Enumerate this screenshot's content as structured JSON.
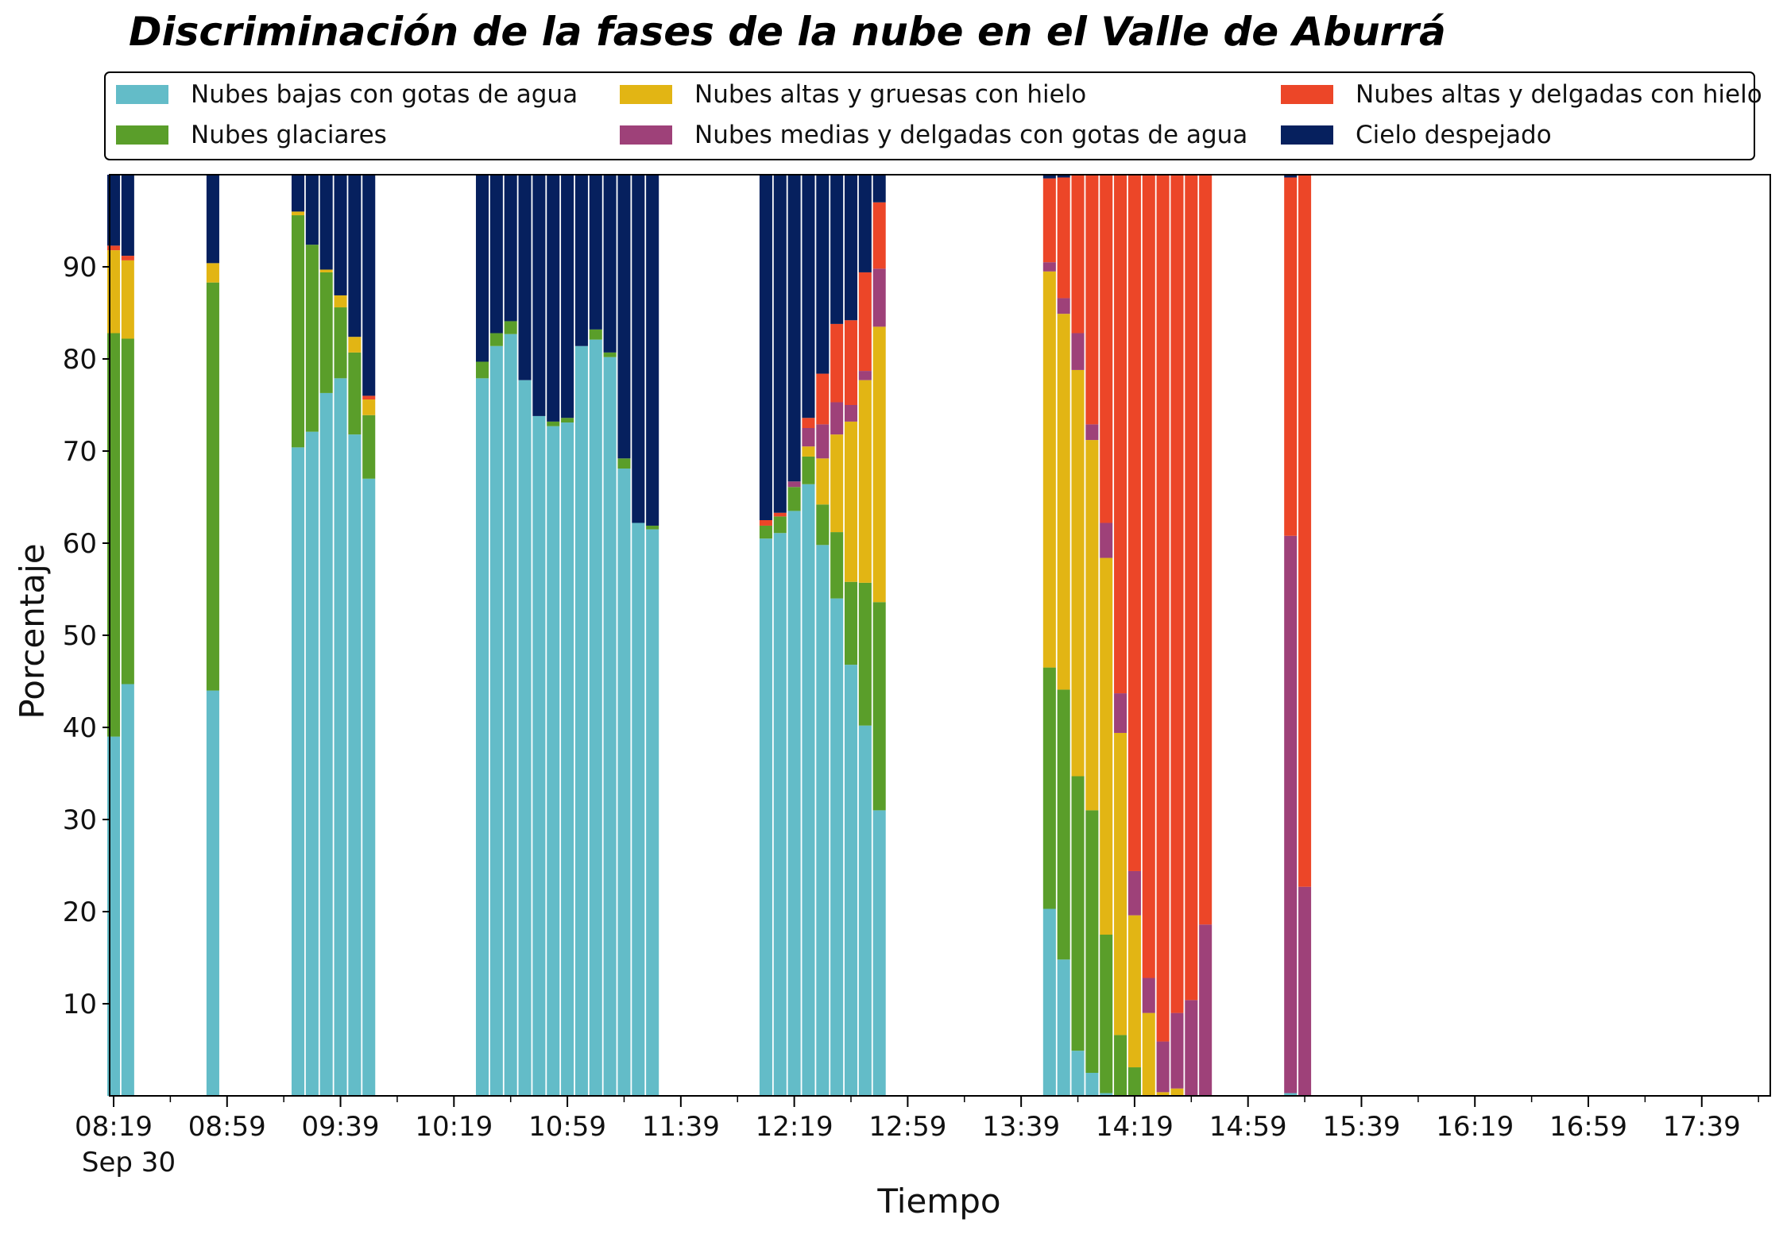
{
  "chart_data": {
    "type": "bar",
    "stacked": true,
    "title": "Discriminación de la fases de la nube en el Valle de Aburrá",
    "xlabel": "Tiempo",
    "ylabel": "Porcentaje",
    "ylim": [
      0,
      100
    ],
    "yticks": [
      10,
      20,
      30,
      40,
      50,
      60,
      70,
      80,
      90
    ],
    "xtick_labels": [
      "08:19",
      "08:59",
      "09:39",
      "10:19",
      "10:59",
      "11:39",
      "12:19",
      "12:59",
      "13:39",
      "14:19",
      "14:59",
      "15:39",
      "16:19",
      "16:59",
      "17:39"
    ],
    "x_date_label": "Sep 30",
    "grid": false,
    "legend_position": "top",
    "legend": [
      {
        "name": "Nubes bajas con gotas de agua",
        "color": "#63bcc8",
        "key": "bajas"
      },
      {
        "name": "Nubes glaciares",
        "color": "#5a9e2a",
        "key": "glaciares"
      },
      {
        "name": "Nubes altas y gruesas con hielo",
        "color": "#e2b514",
        "key": "altas_gruesas"
      },
      {
        "name": "Nubes medias y delgadas con gotas de agua",
        "color": "#9e4179",
        "key": "medias_delgadas"
      },
      {
        "name": "Nubes altas y delgadas con hielo",
        "color": "#ec4628",
        "key": "altas_delgadas"
      },
      {
        "name": "Cielo despejado",
        "color": "#06205e",
        "key": "despejado"
      }
    ],
    "series_order": [
      "bajas",
      "glaciares",
      "altas_gruesas",
      "medias_delgadas",
      "altas_delgadas",
      "despejado"
    ],
    "bars": [
      {
        "time": "08:19",
        "values": [
          39,
          43.8,
          9,
          0,
          0.5,
          7.7
        ]
      },
      {
        "time": "08:24",
        "values": [
          44.7,
          37.5,
          8.5,
          0,
          0.5,
          8.8
        ]
      },
      {
        "time": "08:54",
        "values": [
          44,
          44.3,
          2.1,
          0,
          0,
          9.6
        ]
      },
      {
        "time": "09:24",
        "values": [
          70.4,
          25.2,
          0.4,
          0,
          0,
          4
        ]
      },
      {
        "time": "09:29",
        "values": [
          72.1,
          20.3,
          0,
          0,
          0,
          7.6
        ]
      },
      {
        "time": "09:34",
        "values": [
          76.3,
          13.1,
          0.3,
          0,
          0,
          10.3
        ]
      },
      {
        "time": "09:39",
        "values": [
          77.9,
          7.7,
          1.3,
          0,
          0,
          13.1
        ]
      },
      {
        "time": "09:44",
        "values": [
          71.8,
          8.9,
          1.7,
          0,
          0,
          17.6
        ]
      },
      {
        "time": "09:49",
        "values": [
          67,
          6.9,
          1.7,
          0,
          0.4,
          24
        ]
      },
      {
        "time": "10:29",
        "values": [
          77.9,
          1.8,
          0,
          0,
          0,
          20.3
        ]
      },
      {
        "time": "10:34",
        "values": [
          81.4,
          1.4,
          0,
          0,
          0,
          17.2
        ]
      },
      {
        "time": "10:39",
        "values": [
          82.7,
          1.4,
          0,
          0,
          0,
          15.9
        ]
      },
      {
        "time": "10:44",
        "values": [
          77.7,
          0,
          0,
          0,
          0,
          22.3
        ]
      },
      {
        "time": "10:49",
        "values": [
          73.8,
          0,
          0,
          0,
          0,
          26.2
        ]
      },
      {
        "time": "10:54",
        "values": [
          72.7,
          0.5,
          0,
          0,
          0,
          26.8
        ]
      },
      {
        "time": "10:59",
        "values": [
          73.1,
          0.5,
          0,
          0,
          0,
          26.4
        ]
      },
      {
        "time": "11:04",
        "values": [
          81.4,
          0,
          0,
          0,
          0,
          18.6
        ]
      },
      {
        "time": "11:09",
        "values": [
          82.1,
          1.1,
          0,
          0,
          0,
          16.8
        ]
      },
      {
        "time": "11:14",
        "values": [
          80.2,
          0.5,
          0,
          0,
          0,
          19.3
        ]
      },
      {
        "time": "11:19",
        "values": [
          68.1,
          1.1,
          0,
          0,
          0,
          30.8
        ]
      },
      {
        "time": "11:24",
        "values": [
          62.2,
          0,
          0,
          0,
          0,
          37.8
        ]
      },
      {
        "time": "11:29",
        "values": [
          61.5,
          0.4,
          0,
          0,
          0,
          38.1
        ]
      },
      {
        "time": "12:09",
        "values": [
          60.5,
          1.4,
          0,
          0,
          0.6,
          37.5
        ]
      },
      {
        "time": "12:14",
        "values": [
          61.1,
          1.8,
          0,
          0,
          0.4,
          36.7
        ]
      },
      {
        "time": "12:19",
        "values": [
          63.5,
          2.6,
          0,
          0.6,
          0,
          33.3
        ]
      },
      {
        "time": "12:24",
        "values": [
          66.4,
          3,
          1.1,
          2,
          1.1,
          26.4
        ]
      },
      {
        "time": "12:29",
        "values": [
          59.8,
          4.4,
          5,
          3.7,
          5.5,
          21.6
        ]
      },
      {
        "time": "12:34",
        "values": [
          54,
          7.2,
          10.6,
          3.5,
          8.5,
          16.2
        ]
      },
      {
        "time": "12:39",
        "values": [
          46.8,
          9,
          17.4,
          1.8,
          9.2,
          15.8
        ]
      },
      {
        "time": "12:44",
        "values": [
          40.2,
          15.5,
          22,
          1,
          10.7,
          10.6
        ]
      },
      {
        "time": "12:49",
        "values": [
          31,
          22.6,
          29.9,
          6.3,
          7.2,
          3
        ]
      },
      {
        "time": "13:49",
        "values": [
          20.3,
          26.2,
          43,
          1,
          9.1,
          0.4
        ]
      },
      {
        "time": "13:54",
        "values": [
          14.8,
          29.3,
          40.8,
          1.7,
          13.1,
          0.3
        ]
      },
      {
        "time": "13:59",
        "values": [
          4.9,
          29.8,
          44.1,
          4,
          17.2,
          0
        ]
      },
      {
        "time": "14:04",
        "values": [
          2.5,
          28.5,
          40.2,
          1.7,
          27.1,
          0
        ]
      },
      {
        "time": "14:09",
        "values": [
          0.3,
          17.2,
          40.9,
          3.8,
          37.8,
          0
        ]
      },
      {
        "time": "14:14",
        "values": [
          0,
          6.6,
          32.8,
          4.3,
          56.3,
          0
        ]
      },
      {
        "time": "14:19",
        "values": [
          0,
          3.1,
          16.5,
          4.8,
          75.6,
          0
        ]
      },
      {
        "time": "14:24",
        "values": [
          0,
          0,
          9,
          3.8,
          87.2,
          0
        ]
      },
      {
        "time": "14:29",
        "values": [
          0,
          0,
          0.4,
          5.5,
          94.1,
          0
        ]
      },
      {
        "time": "14:34",
        "values": [
          0,
          0,
          0.8,
          8.2,
          91,
          0
        ]
      },
      {
        "time": "14:39",
        "values": [
          0,
          0,
          0,
          10.4,
          89.6,
          0
        ]
      },
      {
        "time": "14:44",
        "values": [
          0,
          0,
          0,
          18.6,
          81.4,
          0
        ]
      },
      {
        "time": "15:14",
        "values": [
          0.3,
          0,
          0,
          60.5,
          38.9,
          0.3
        ]
      },
      {
        "time": "15:19",
        "values": [
          0,
          0,
          0,
          22.7,
          77.3,
          0
        ]
      }
    ]
  }
}
